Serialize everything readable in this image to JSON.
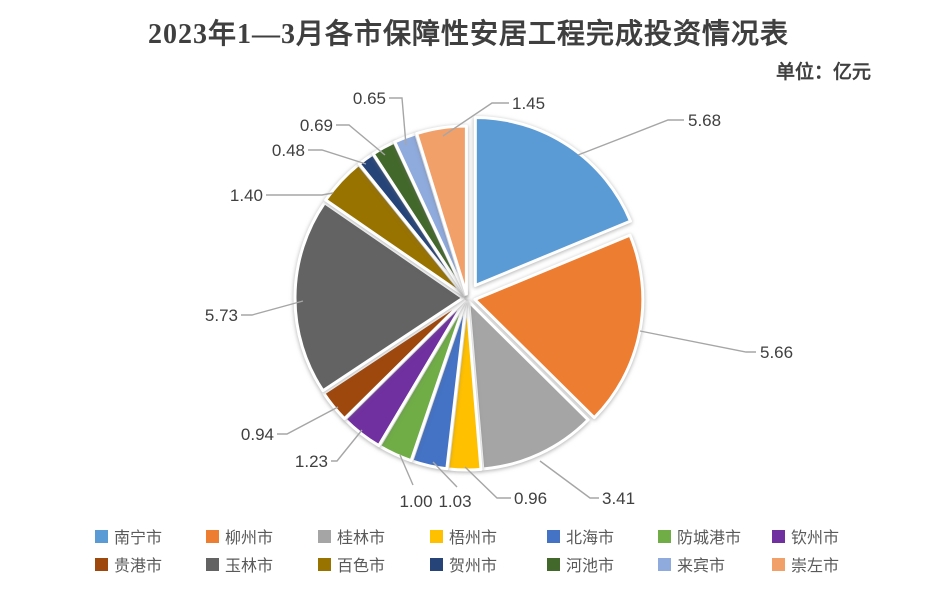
{
  "title": "2023年1—3月各市保障性安居工程完成投资情况表",
  "unit_label": "单位：亿元",
  "chart_data": {
    "type": "pie",
    "title": "2023年1—3月各市保障性安居工程完成投资情况表",
    "unit": "亿元",
    "categories": [
      "南宁市",
      "柳州市",
      "桂林市",
      "梧州市",
      "北海市",
      "防城港市",
      "钦州市",
      "贵港市",
      "玉林市",
      "百色市",
      "贺州市",
      "河池市",
      "来宾市",
      "崇左市"
    ],
    "values": [
      5.68,
      5.66,
      3.41,
      0.96,
      1.03,
      1.0,
      1.23,
      0.94,
      5.73,
      1.4,
      0.48,
      0.69,
      0.65,
      1.45
    ],
    "data_labels": [
      "5.68",
      "5.66",
      "3.41",
      "0.96",
      "1.03",
      "1.00",
      "1.23",
      "0.94",
      "5.73",
      "1.40",
      "0.48",
      "0.69",
      "0.65",
      "1.45"
    ],
    "total": 30.31,
    "colors": [
      "#5B9BD5",
      "#ED7D31",
      "#A5A5A5",
      "#FFC000",
      "#4472C4",
      "#70AD47",
      "#7030A0",
      "#9E480E",
      "#636363",
      "#997300",
      "#264478",
      "#43682B",
      "#8FAADC",
      "#F2A06A"
    ],
    "legend_position": "bottom",
    "start_angle": 0,
    "clockwise": true,
    "exploded": true,
    "label_color": "#404040",
    "leader_line_color": "#A6A6A6"
  }
}
